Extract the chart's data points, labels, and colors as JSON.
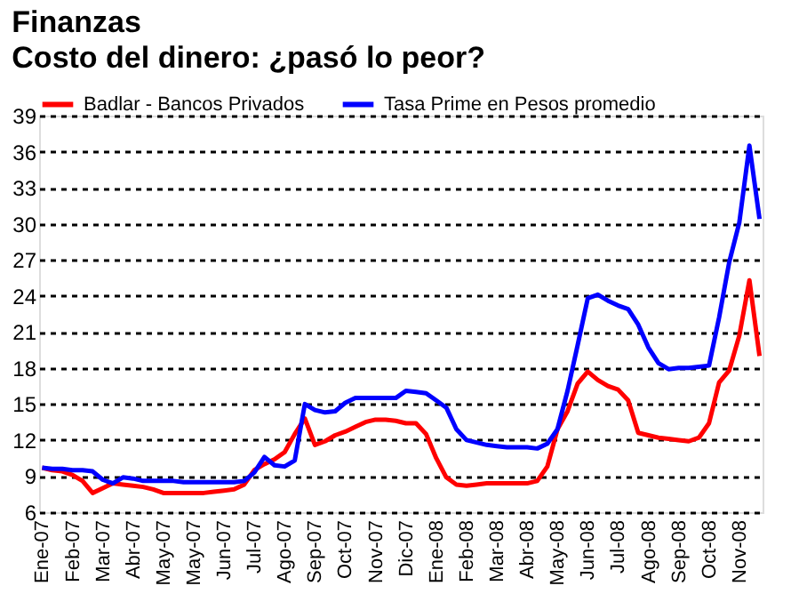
{
  "chart_data": {
    "type": "line",
    "title": "Finanzas",
    "subtitle": "Costo del dinero: ¿pasó lo peor?",
    "categories": [
      "Ene-07",
      null,
      null,
      "Feb-07",
      null,
      null,
      "Mar-07",
      null,
      null,
      "Abr-07",
      null,
      null,
      "May-07",
      null,
      null,
      "May-07",
      null,
      null,
      "Jun-07",
      null,
      null,
      "Jul-07",
      null,
      null,
      "Ago-07",
      null,
      null,
      "Sep-07",
      null,
      null,
      "Oct-07",
      null,
      null,
      "Nov-07",
      null,
      null,
      "Dic-07",
      null,
      null,
      "Ene-08",
      null,
      null,
      "Feb-08",
      null,
      null,
      "Mar-08",
      null,
      null,
      "Abr-08",
      null,
      null,
      "May-08",
      null,
      null,
      "Jun-08",
      null,
      null,
      "Jul-08",
      null,
      null,
      "Ago-08",
      null,
      null,
      "Sep-08",
      null,
      null,
      "Oct-08",
      null,
      null,
      "Nov-08",
      null,
      null
    ],
    "ylim": [
      6,
      39
    ],
    "yticks": [
      6,
      9,
      12,
      15,
      18,
      21,
      24,
      27,
      30,
      33,
      36,
      39
    ],
    "grid": "y",
    "legend": "top",
    "line_style": "solid",
    "series": [
      {
        "name": "Badlar - Bancos Privados",
        "color": "#ff0000",
        "values": [
          9.7,
          9.5,
          9.4,
          9.1,
          8.6,
          7.6,
          8.0,
          8.4,
          8.3,
          8.2,
          8.1,
          7.9,
          7.6,
          7.6,
          7.6,
          7.6,
          7.6,
          7.7,
          7.8,
          7.9,
          8.3,
          9.5,
          10.0,
          10.4,
          11.0,
          12.5,
          13.8,
          11.6,
          11.9,
          12.4,
          12.7,
          13.1,
          13.5,
          13.7,
          13.7,
          13.6,
          13.4,
          13.4,
          12.5,
          10.5,
          8.9,
          8.3,
          8.2,
          8.3,
          8.4,
          8.4,
          8.4,
          8.4,
          8.4,
          8.6,
          9.8,
          12.9,
          14.4,
          16.7,
          17.7,
          17.0,
          16.5,
          16.2,
          15.3,
          12.6,
          12.4,
          12.2,
          12.1,
          12.0,
          11.9,
          12.2,
          13.4,
          16.8,
          17.8,
          20.7,
          25.3,
          19.0
        ]
      },
      {
        "name": "Tasa Prime en Pesos promedio",
        "color": "#0000ff",
        "values": [
          9.7,
          9.6,
          9.6,
          9.5,
          9.5,
          9.4,
          8.7,
          8.4,
          8.9,
          8.8,
          8.6,
          8.6,
          8.6,
          8.6,
          8.5,
          8.5,
          8.5,
          8.5,
          8.5,
          8.5,
          8.6,
          9.3,
          10.6,
          9.9,
          9.8,
          10.3,
          15.0,
          14.5,
          14.3,
          14.4,
          15.1,
          15.5,
          15.5,
          15.5,
          15.5,
          15.5,
          16.1,
          16.0,
          15.9,
          15.3,
          14.7,
          12.9,
          12.0,
          11.8,
          11.6,
          11.5,
          11.4,
          11.4,
          11.4,
          11.3,
          11.7,
          12.9,
          16.1,
          19.9,
          23.8,
          24.1,
          23.6,
          23.2,
          22.9,
          21.6,
          19.7,
          18.4,
          17.9,
          18.0,
          18.0,
          18.1,
          18.2,
          22.2,
          26.8,
          30.1,
          36.5,
          30.4
        ]
      }
    ]
  }
}
